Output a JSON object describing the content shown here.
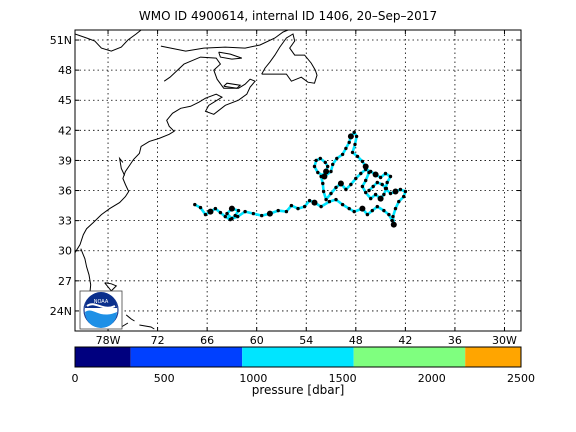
{
  "title": "WMO ID 4900614, internal ID 1406, 20–Sep–2017",
  "map": {
    "lon_range": [
      -82,
      -28
    ],
    "lat_range": [
      22,
      52
    ],
    "lat_ticks": [
      {
        "v": 51,
        "t": "51N"
      },
      {
        "v": 48,
        "t": "48"
      },
      {
        "v": 45,
        "t": "45"
      },
      {
        "v": 42,
        "t": "42"
      },
      {
        "v": 39,
        "t": "39"
      },
      {
        "v": 36,
        "t": "36"
      },
      {
        "v": 33,
        "t": "33"
      },
      {
        "v": 30,
        "t": "30"
      },
      {
        "v": 27,
        "t": "27"
      },
      {
        "v": 24,
        "t": "24N"
      }
    ],
    "lon_ticks": [
      {
        "v": -78,
        "t": "78W"
      },
      {
        "v": -72,
        "t": "72"
      },
      {
        "v": -66,
        "t": "66"
      },
      {
        "v": -60,
        "t": "60"
      },
      {
        "v": -54,
        "t": "54"
      },
      {
        "v": -48,
        "t": "48"
      },
      {
        "v": -42,
        "t": "42"
      },
      {
        "v": -36,
        "t": "36"
      },
      {
        "v": -30,
        "t": "30W"
      }
    ],
    "grid": true,
    "logo_icon": "noaa-logo-icon",
    "track": [
      [
        -67.5,
        34.6
      ],
      [
        -66.8,
        34.3
      ],
      [
        -66.2,
        33.6
      ],
      [
        -65.6,
        33.9
      ],
      [
        -65.0,
        34.2
      ],
      [
        -64.4,
        33.8
      ],
      [
        -63.8,
        33.4
      ],
      [
        -63.2,
        33.1
      ],
      [
        -62.6,
        33.5
      ],
      [
        -62.2,
        34.0
      ],
      [
        -63.0,
        34.2
      ],
      [
        -63.6,
        33.7
      ],
      [
        -63.0,
        33.2
      ],
      [
        -62.3,
        33.4
      ],
      [
        -61.4,
        33.9
      ],
      [
        -60.4,
        33.7
      ],
      [
        -59.4,
        33.5
      ],
      [
        -58.4,
        33.7
      ],
      [
        -57.4,
        34.0
      ],
      [
        -56.4,
        33.9
      ],
      [
        -55.8,
        34.5
      ],
      [
        -55.0,
        34.2
      ],
      [
        -54.2,
        34.4
      ],
      [
        -53.6,
        35.0
      ],
      [
        -53.0,
        34.8
      ],
      [
        -52.2,
        34.4
      ],
      [
        -51.2,
        34.9
      ],
      [
        -50.4,
        35.1
      ],
      [
        -49.6,
        34.6
      ],
      [
        -48.8,
        34.2
      ],
      [
        -48.2,
        33.9
      ],
      [
        -47.2,
        34.2
      ],
      [
        -46.6,
        33.6
      ],
      [
        -46.0,
        34.0
      ],
      [
        -45.4,
        34.4
      ],
      [
        -44.6,
        34.0
      ],
      [
        -44.0,
        33.6
      ],
      [
        -43.6,
        33.0
      ],
      [
        -43.4,
        32.6
      ],
      [
        -43.5,
        33.4
      ],
      [
        -43.2,
        34.2
      ],
      [
        -42.8,
        34.9
      ],
      [
        -42.2,
        35.4
      ],
      [
        -42.0,
        35.9
      ],
      [
        -42.6,
        36.1
      ],
      [
        -43.2,
        35.9
      ],
      [
        -43.8,
        35.7
      ],
      [
        -44.4,
        36.2
      ],
      [
        -44.2,
        36.8
      ],
      [
        -43.8,
        37.4
      ],
      [
        -44.4,
        37.7
      ],
      [
        -45.0,
        37.3
      ],
      [
        -45.6,
        37.6
      ],
      [
        -46.2,
        37.9
      ],
      [
        -46.8,
        38.1
      ],
      [
        -47.4,
        37.7
      ],
      [
        -48.0,
        37.2
      ],
      [
        -48.6,
        36.6
      ],
      [
        -49.2,
        36.1
      ],
      [
        -49.8,
        36.7
      ],
      [
        -50.4,
        36.3
      ],
      [
        -51.0,
        35.7
      ],
      [
        -51.6,
        35.1
      ],
      [
        -51.9,
        35.9
      ],
      [
        -52.0,
        36.7
      ],
      [
        -52.2,
        37.4
      ],
      [
        -51.6,
        37.9
      ],
      [
        -51.4,
        38.4
      ],
      [
        -51.7,
        38.8
      ],
      [
        -52.3,
        39.2
      ],
      [
        -52.8,
        39.0
      ],
      [
        -53.0,
        38.4
      ],
      [
        -52.6,
        37.8
      ],
      [
        -51.8,
        37.4
      ],
      [
        -51.0,
        37.9
      ],
      [
        -50.8,
        38.6
      ],
      [
        -50.3,
        39.2
      ],
      [
        -49.6,
        39.6
      ],
      [
        -49.2,
        40.2
      ],
      [
        -48.8,
        40.8
      ],
      [
        -48.6,
        41.4
      ],
      [
        -48.2,
        41.8
      ],
      [
        -47.9,
        41.4
      ],
      [
        -48.1,
        40.6
      ],
      [
        -48.4,
        39.8
      ],
      [
        -47.8,
        39.4
      ],
      [
        -47.2,
        38.9
      ],
      [
        -46.8,
        38.4
      ],
      [
        -46.4,
        37.8
      ],
      [
        -46.8,
        37.0
      ],
      [
        -47.2,
        36.4
      ],
      [
        -46.8,
        35.8
      ],
      [
        -46.2,
        35.2
      ],
      [
        -45.6,
        35.6
      ],
      [
        -45.0,
        35.2
      ],
      [
        -44.6,
        35.6
      ],
      [
        -44.3,
        36.2
      ],
      [
        -44.8,
        36.6
      ],
      [
        -45.4,
        36.8
      ],
      [
        -45.9,
        36.4
      ],
      [
        -46.4,
        36.0
      ]
    ],
    "coast": [
      [
        [
          -82,
          29.8
        ],
        [
          -81.4,
          30.6
        ],
        [
          -81.0,
          31.6
        ],
        [
          -80.6,
          32.2
        ],
        [
          -79.8,
          32.8
        ],
        [
          -78.8,
          33.6
        ],
        [
          -77.8,
          34.2
        ],
        [
          -76.6,
          34.8
        ],
        [
          -75.9,
          35.4
        ],
        [
          -75.5,
          35.9
        ],
        [
          -75.9,
          36.6
        ],
        [
          -76.2,
          37.2
        ],
        [
          -75.9,
          37.9
        ],
        [
          -75.4,
          38.5
        ],
        [
          -74.9,
          39.1
        ],
        [
          -74.2,
          39.7
        ],
        [
          -74.0,
          40.4
        ],
        [
          -73.0,
          40.9
        ],
        [
          -71.8,
          41.2
        ],
        [
          -70.6,
          41.6
        ],
        [
          -70.0,
          41.9
        ],
        [
          -70.6,
          42.4
        ],
        [
          -70.9,
          43.0
        ],
        [
          -70.2,
          43.7
        ],
        [
          -69.2,
          44.2
        ],
        [
          -68.0,
          44.4
        ],
        [
          -67.0,
          44.8
        ],
        [
          -66.2,
          45.2
        ],
        [
          -64.9,
          45.6
        ],
        [
          -64.2,
          45.3
        ],
        [
          -65.8,
          44.5
        ],
        [
          -66.2,
          43.9
        ],
        [
          -65.2,
          43.6
        ],
        [
          -63.8,
          44.5
        ],
        [
          -62.2,
          45.0
        ],
        [
          -61.2,
          45.6
        ],
        [
          -60.8,
          46.3
        ],
        [
          -60.2,
          46.9
        ],
        [
          -60.8,
          47.1
        ],
        [
          -61.4,
          46.6
        ],
        [
          -62.2,
          46.2
        ],
        [
          -64.0,
          46.2
        ],
        [
          -64.8,
          47.1
        ],
        [
          -65.2,
          48.0
        ],
        [
          -64.4,
          48.6
        ],
        [
          -64.9,
          49.2
        ],
        [
          -66.8,
          49.3
        ],
        [
          -68.8,
          48.6
        ],
        [
          -70.5,
          47.3
        ],
        [
          -71.2,
          46.9
        ]
      ],
      [
        [
          -59.4,
          47.6
        ],
        [
          -59.0,
          48.2
        ],
        [
          -58.4,
          48.8
        ],
        [
          -57.8,
          49.5
        ],
        [
          -57.2,
          50.3
        ],
        [
          -56.4,
          51.2
        ],
        [
          -55.6,
          51.6
        ],
        [
          -55.4,
          50.9
        ],
        [
          -56.0,
          50.2
        ],
        [
          -55.4,
          49.5
        ],
        [
          -54.2,
          49.5
        ],
        [
          -53.4,
          48.7
        ],
        [
          -52.9,
          48.0
        ],
        [
          -52.7,
          47.5
        ],
        [
          -53.0,
          46.7
        ],
        [
          -53.8,
          46.8
        ],
        [
          -54.6,
          47.3
        ],
        [
          -55.8,
          46.9
        ],
        [
          -56.4,
          47.6
        ],
        [
          -58.2,
          47.6
        ],
        [
          -59.4,
          47.6
        ]
      ],
      [
        [
          -82,
          51.6
        ],
        [
          -80.6,
          51.2
        ],
        [
          -79.6,
          50.9
        ],
        [
          -78.8,
          50.2
        ],
        [
          -77.6,
          49.9
        ],
        [
          -76.4,
          50.3
        ],
        [
          -75.6,
          51.0
        ],
        [
          -74.6,
          51.6
        ],
        [
          -74.0,
          52.0
        ]
      ],
      [
        [
          -71.6,
          50.4
        ],
        [
          -68.6,
          49.9
        ],
        [
          -66.4,
          50.2
        ],
        [
          -63.8,
          50.3
        ],
        [
          -61.4,
          50.2
        ],
        [
          -59.6,
          50.5
        ],
        [
          -57.8,
          51.2
        ],
        [
          -56.8,
          51.8
        ],
        [
          -56.2,
          52.0
        ]
      ],
      [
        [
          -64.6,
          49.8
        ],
        [
          -63.2,
          49.6
        ],
        [
          -61.8,
          49.2
        ],
        [
          -63.0,
          49.1
        ],
        [
          -64.4,
          49.3
        ],
        [
          -64.6,
          49.8
        ]
      ],
      [
        [
          -64.0,
          46.4
        ],
        [
          -62.4,
          46.2
        ],
        [
          -62.0,
          46.5
        ],
        [
          -63.6,
          46.7
        ],
        [
          -64.0,
          46.4
        ]
      ],
      [
        [
          -76.2,
          38.8
        ],
        [
          -76.6,
          39.2
        ],
        [
          -76.4,
          38.2
        ],
        [
          -76.0,
          37.5
        ]
      ],
      [
        [
          -80.5,
          25.2
        ],
        [
          -80.2,
          25.8
        ],
        [
          -80.1,
          26.6
        ],
        [
          -80.3,
          27.6
        ],
        [
          -80.6,
          28.4
        ],
        [
          -80.8,
          29.2
        ],
        [
          -81.3,
          30.2
        ]
      ],
      [
        [
          -78.4,
          26.8
        ],
        [
          -77.6,
          26.7
        ],
        [
          -77.0,
          26.5
        ],
        [
          -77.6,
          26.0
        ],
        [
          -78.4,
          26.8
        ]
      ],
      [
        [
          -77.8,
          25.2
        ],
        [
          -77.3,
          24.4
        ],
        [
          -76.6,
          24.0
        ],
        [
          -77.1,
          24.8
        ],
        [
          -77.8,
          25.2
        ]
      ],
      [
        [
          -75.8,
          23.6
        ],
        [
          -75.2,
          23.2
        ],
        [
          -74.8,
          23.0
        ]
      ],
      [
        [
          -74.2,
          22.6
        ],
        [
          -72.8,
          22.4
        ],
        [
          -72.4,
          22.2
        ]
      ],
      [
        [
          -76.4,
          22.4
        ],
        [
          -76.0,
          22.6
        ],
        [
          -75.6,
          22.8
        ]
      ]
    ]
  },
  "colorbar": {
    "ticks": [
      "0",
      "500",
      "1000",
      "1500",
      "2000",
      "2500"
    ],
    "label": "pressure [dbar]",
    "segments": [
      {
        "from": 0,
        "to": 312,
        "color": "#00007f"
      },
      {
        "from": 312,
        "to": 937,
        "color": "#0040ff"
      },
      {
        "from": 937,
        "to": 1562,
        "color": "#00e5ff"
      },
      {
        "from": 1562,
        "to": 2187,
        "color": "#7fff7f"
      },
      {
        "from": 2187,
        "to": 2500,
        "color": "#ffa500"
      }
    ]
  }
}
